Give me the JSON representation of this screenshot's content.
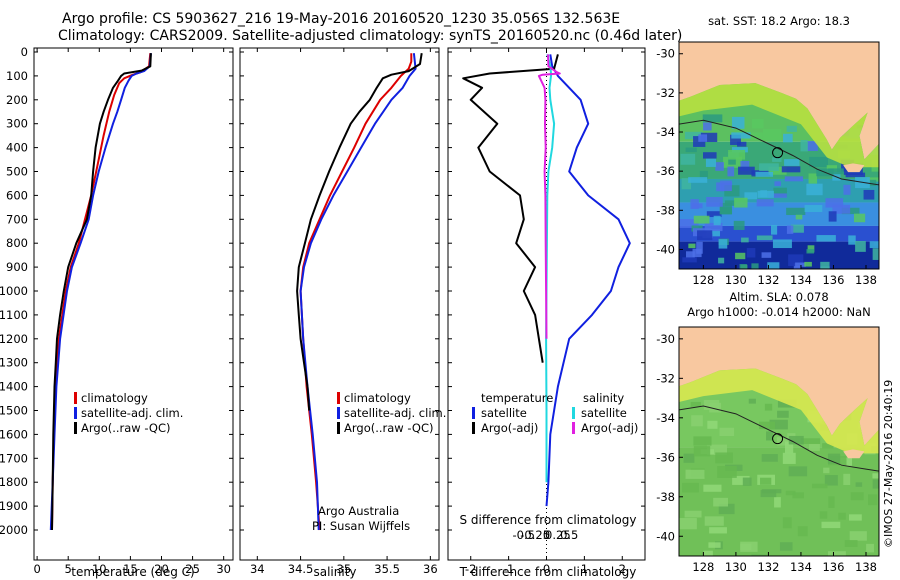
{
  "header": {
    "line1": "Argo profile: CS 5903627_216 19-May-2016 20160520_1230 35.056S 132.563E",
    "line2": "Climatology: CARS2009. Satellite-adjusted climatology: synTS_20160520.nc (0.46d later)"
  },
  "watermark": "©IMOS 27-May-2016 20:40:19",
  "colors": {
    "climatology": "#dd0000",
    "satellite": "#1020e0",
    "argo": "#000000",
    "salinity_sat": "#20d8e0",
    "salinity_argo": "#e020e0"
  },
  "depth_axis": {
    "ylim": [
      0,
      2050
    ],
    "ticks": [
      0,
      100,
      200,
      300,
      400,
      500,
      600,
      700,
      800,
      900,
      1000,
      1100,
      1200,
      1300,
      1400,
      1500,
      1600,
      1700,
      1800,
      1900,
      2000
    ]
  },
  "chart_data": [
    {
      "type": "line",
      "id": "temperature",
      "xlabel": "temperature (deg C)",
      "xlim": [
        -0.5,
        31.5
      ],
      "xticks": [
        0,
        5,
        10,
        15,
        20,
        25,
        30
      ],
      "legend": [
        "climatology",
        "satellite-adj. clim.",
        "Argo(..raw -QC)"
      ],
      "series": [
        {
          "name": "climatology",
          "color": "#dd0000",
          "depth": [
            5,
            60,
            85,
            95,
            110,
            130,
            180,
            250,
            350,
            450,
            600,
            700,
            800,
            900,
            1000,
            1200,
            1400,
            1600,
            1800,
            2000
          ],
          "values": [
            18.2,
            18.0,
            16.6,
            15.4,
            14.0,
            13.2,
            12.4,
            11.6,
            10.7,
            9.9,
            8.7,
            7.7,
            6.7,
            5.4,
            4.6,
            3.5,
            3.0,
            2.7,
            2.5,
            2.4
          ]
        },
        {
          "name": "satellite-adj. clim.",
          "color": "#1020e0",
          "depth": [
            5,
            60,
            80,
            90,
            100,
            120,
            150,
            200,
            250,
            300,
            400,
            500,
            600,
            700,
            800,
            900,
            1000,
            1200,
            1400,
            1600,
            1800,
            2000
          ],
          "values": [
            18.3,
            18.1,
            17.2,
            16.0,
            15.2,
            14.7,
            14.1,
            13.5,
            12.9,
            12.2,
            11.0,
            9.9,
            9.0,
            8.3,
            7.0,
            5.6,
            4.8,
            3.7,
            3.1,
            2.8,
            2.5,
            2.2
          ]
        },
        {
          "name": "Argo(..raw -QC)",
          "color": "#000000",
          "depth": [
            5,
            60,
            78,
            90,
            100,
            120,
            150,
            200,
            250,
            300,
            400,
            500,
            600,
            700,
            800,
            900,
            1000,
            1100,
            1200,
            1300,
            1400,
            1500,
            1600,
            1800,
            2000
          ],
          "values": [
            18.3,
            18.2,
            16.8,
            14.0,
            13.5,
            13.0,
            12.2,
            11.4,
            10.7,
            10.1,
            9.4,
            9.0,
            8.7,
            8.0,
            6.3,
            5.0,
            4.3,
            3.7,
            3.2,
            3.0,
            2.8,
            2.7,
            2.6,
            2.5,
            2.4
          ]
        }
      ]
    },
    {
      "type": "line",
      "id": "salinity",
      "xlabel": "salinity",
      "xlim": [
        33.8,
        36.1
      ],
      "xticks": [
        34,
        34.5,
        35,
        35.5,
        36
      ],
      "legend": [
        "climatology",
        "satellite-adj. clim.",
        "Argo(..raw -QC)"
      ],
      "annotation": [
        "Argo Australia",
        "PI: Susan Wijffels"
      ],
      "series": [
        {
          "name": "climatology",
          "color": "#dd0000",
          "depth": [
            5,
            40,
            70,
            100,
            150,
            200,
            300,
            400,
            500,
            600,
            700,
            800,
            900,
            1000,
            1200,
            1400,
            1600,
            1800,
            2000
          ],
          "values": [
            35.78,
            35.78,
            35.75,
            35.66,
            35.55,
            35.42,
            35.25,
            35.12,
            34.98,
            34.84,
            34.72,
            34.6,
            34.53,
            34.5,
            34.53,
            34.57,
            34.63,
            34.68,
            34.72
          ]
        },
        {
          "name": "satellite-adj. clim.",
          "color": "#1020e0",
          "depth": [
            5,
            40,
            70,
            100,
            150,
            200,
            300,
            400,
            500,
            600,
            700,
            800,
            900,
            1000,
            1200,
            1400,
            1600,
            1800,
            2000
          ],
          "values": [
            35.81,
            35.82,
            35.83,
            35.76,
            35.68,
            35.55,
            35.36,
            35.2,
            35.04,
            34.88,
            34.74,
            34.62,
            34.54,
            34.5,
            34.53,
            34.58,
            34.64,
            34.69,
            34.71
          ]
        },
        {
          "name": "Argo(..raw -QC)",
          "color": "#000000",
          "depth": [
            5,
            50,
            80,
            95,
            110,
            150,
            200,
            250,
            300,
            400,
            500,
            600,
            700,
            800,
            900,
            1000,
            1100,
            1200,
            1300,
            1400,
            1500
          ],
          "values": [
            35.9,
            35.88,
            35.75,
            35.55,
            35.45,
            35.38,
            35.3,
            35.18,
            35.08,
            34.95,
            34.83,
            34.72,
            34.62,
            34.55,
            34.48,
            34.46,
            34.48,
            34.5,
            34.54,
            34.58,
            34.6
          ]
        }
      ]
    },
    {
      "type": "line",
      "id": "difference",
      "xlabel": "T difference from climatology",
      "xlabel2": "S difference from climatology",
      "xlim": [
        -2.6,
        2.6
      ],
      "xticks": [
        -2,
        -1,
        0,
        1,
        2
      ],
      "xticks_top": [
        -0.5,
        -0.25,
        0,
        0.25,
        0.5
      ],
      "xticks_top_labels": [
        "-0.5",
        "-0.25",
        "0",
        "0.25",
        "0.5"
      ],
      "legend_headers": [
        "temperature",
        "salinity"
      ],
      "legend": [
        "satellite",
        "Argo(-adj)",
        "satellite",
        "Argo(-adj)"
      ],
      "series": [
        {
          "name": "temperature satellite",
          "color": "#1020e0",
          "depth": [
            10,
            60,
            100,
            150,
            200,
            300,
            400,
            500,
            600,
            700,
            800,
            900,
            1000,
            1100,
            1200,
            1400,
            1600,
            1800,
            1900
          ],
          "values": [
            0.1,
            0.15,
            0.3,
            0.6,
            0.9,
            1.1,
            0.8,
            0.6,
            1.1,
            1.9,
            2.2,
            1.9,
            1.7,
            1.2,
            0.6,
            0.3,
            0.1,
            0.05,
            0.0
          ]
        },
        {
          "name": "temperature Argo(-adj)",
          "color": "#000000",
          "depth": [
            10,
            70,
            90,
            110,
            150,
            200,
            300,
            400,
            500,
            600,
            700,
            800,
            900,
            1000,
            1100,
            1200,
            1300
          ],
          "values": [
            0.3,
            0.2,
            -1.5,
            -2.2,
            -1.7,
            -2.0,
            -1.3,
            -1.8,
            -1.5,
            -0.7,
            -0.6,
            -0.8,
            -0.3,
            -0.6,
            -0.3,
            -0.2,
            -0.1
          ]
        },
        {
          "name": "salinity satellite",
          "color": "#20d8e0",
          "depth": [
            10,
            60,
            90,
            100,
            150,
            200,
            300,
            400,
            500,
            600,
            800,
            1000,
            1200,
            1500,
            1800
          ],
          "values": [
            0.02,
            0.1,
            0.12,
            0.12,
            0.08,
            0.1,
            0.2,
            0.15,
            0.05,
            0.02,
            0.01,
            0.0,
            -0.01,
            0.0,
            0.0
          ]
        },
        {
          "name": "salinity Argo(-adj)",
          "color": "#e020e0",
          "depth": [
            10,
            60,
            85,
            90,
            95,
            100,
            150,
            200,
            300,
            400,
            500,
            600,
            800,
            1000,
            1200
          ],
          "values": [
            0.04,
            0.05,
            0.28,
            0.35,
            -0.1,
            -0.2,
            -0.05,
            -0.03,
            -0.04,
            -0.02,
            -0.05,
            -0.03,
            -0.02,
            -0.01,
            0.0
          ]
        }
      ]
    },
    {
      "type": "heatmap",
      "id": "sst-map",
      "title": "sat. SST: 18.2  Argo: 18.3",
      "xticks": [
        128,
        130,
        132,
        134,
        136,
        138
      ],
      "yticks": [
        -30,
        -32,
        -34,
        -36,
        -38,
        -40
      ],
      "xlim": [
        126.5,
        138.8
      ],
      "ylim": [
        -41,
        -29.4
      ],
      "profile_location": [
        132.563,
        -35.056
      ]
    },
    {
      "type": "heatmap",
      "id": "sla-map",
      "title1": "Altim. SLA: 0.078",
      "title2": "Argo h1000: -0.014  h2000: NaN",
      "xticks": [
        128,
        130,
        132,
        134,
        136,
        138
      ],
      "yticks": [
        -30,
        -32,
        -34,
        -36,
        -38,
        -40
      ],
      "xlim": [
        126.5,
        138.8
      ],
      "ylim": [
        -41,
        -29.4
      ],
      "profile_location": [
        132.563,
        -35.056
      ]
    }
  ]
}
